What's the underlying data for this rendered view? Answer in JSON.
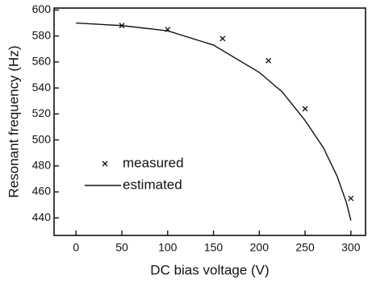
{
  "chart_data": {
    "type": "scatter",
    "xlabel": "DC bias voltage  (V)",
    "ylabel": "Resonant frequency  (Hz)",
    "series": [
      {
        "name": "measured",
        "style": "markers",
        "color": "#111111",
        "x": [
          50,
          100,
          160,
          210,
          250,
          300
        ],
        "values": [
          588,
          585,
          578,
          561,
          524,
          455
        ]
      },
      {
        "name": "estimated",
        "style": "line",
        "color": "#111111",
        "x": [
          0,
          50,
          100,
          150,
          200,
          225,
          250,
          270,
          285,
          295,
          300
        ],
        "values": [
          590,
          588,
          584,
          573,
          552,
          537,
          515,
          494,
          472,
          452,
          438
        ]
      }
    ],
    "xlim": [
      -24,
      316
    ],
    "xticks": [
      0,
      50,
      100,
      150,
      200,
      250,
      300
    ],
    "ylim": [
      426.5,
      601.5
    ],
    "yticks": [
      440,
      460,
      480,
      500,
      520,
      540,
      560,
      580,
      600
    ],
    "legend": "lower-left"
  }
}
